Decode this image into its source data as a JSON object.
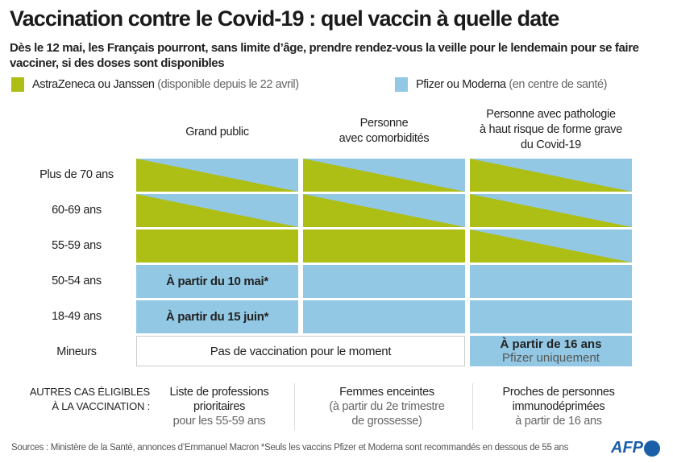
{
  "title": "Vaccination contre le Covid-19 : quel vaccin à quelle date",
  "subtitle": "Dès le 12 mai, les Français pourront, sans limite d’âge, prendre rendez-vous la veille pour le lendemain pour se faire vacciner, si des doses sont disponibles",
  "colors": {
    "green": "#adbe14",
    "blue": "#93c8e4"
  },
  "legend": [
    {
      "name": "AstraZeneca ou Janssen",
      "note": "(disponible depuis le 22 avril)",
      "color": "#adbe14"
    },
    {
      "name": "Pfizer ou Moderna",
      "note": "(en centre de santé)",
      "color": "#93c8e4"
    }
  ],
  "columns": [
    "Grand public",
    "Personne\navec comorbidités",
    "Personne avec pathologie\nà haut risque de forme grave\ndu Covid-19"
  ],
  "rows": [
    {
      "label": "Plus de 70 ans",
      "cells": [
        "split",
        "split",
        "split"
      ]
    },
    {
      "label": "60-69 ans",
      "cells": [
        "split",
        "split",
        "split"
      ]
    },
    {
      "label": "55-59 ans",
      "cells": [
        "green",
        "green",
        "split"
      ]
    },
    {
      "label": "50-54 ans",
      "cells": [
        "blue",
        "blue",
        "blue"
      ],
      "text0": "À partir du 10 mai*"
    },
    {
      "label": "18-49 ans",
      "cells": [
        "blue",
        "blue",
        "blue"
      ],
      "text0": "À partir du 15 juin*"
    },
    {
      "label": "Mineurs",
      "merged": "Pas de vaccination pour le moment",
      "last_bold": "À partir de 16 ans",
      "last_note": "Pfizer uniquement"
    }
  ],
  "others": {
    "label1": "Autres cas éligibles",
    "label2": "à la vaccination :",
    "items": [
      {
        "l1": "Liste de professions",
        "l2": "prioritaires",
        "l3": "pour les 55-59 ans"
      },
      {
        "l1": "Femmes enceintes",
        "l2": "(à partir du 2e trimestre",
        "l3": "de grossesse)"
      },
      {
        "l1": "Proches de personnes",
        "l2": "immunodéprimées",
        "l3": "à partir de 16 ans"
      }
    ]
  },
  "source": "Sources : Ministère de la Santé, annonces d’Emmanuel Macron  *Seuls les vaccins Pfizer et Moderna sont recommandés en dessous de 55 ans",
  "logo": "AFP"
}
